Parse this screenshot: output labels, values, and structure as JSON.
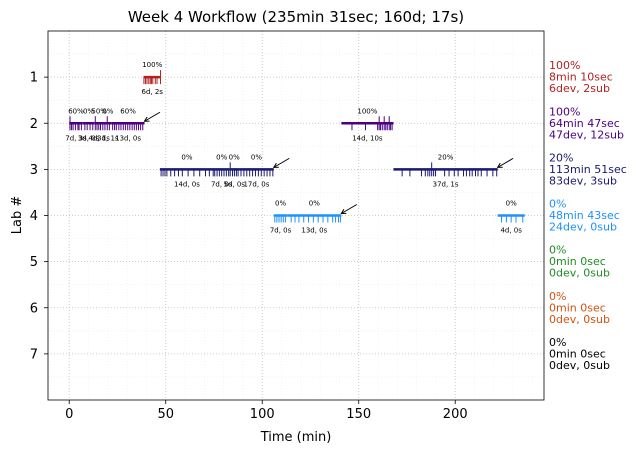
{
  "chart_data": {
    "type": "timeline",
    "title": "Week 4 Workflow (235min 31sec; 160d; 17s)",
    "xlabel": "Time (min)",
    "ylabel": "Lab #",
    "xlim": [
      -11,
      246
    ],
    "ylim": [
      8.0,
      0.0
    ],
    "xticks": [
      0,
      50,
      100,
      150,
      200
    ],
    "yticks": [
      1,
      2,
      3,
      4,
      5,
      6,
      7
    ],
    "grid": true,
    "labs": [
      {
        "lab": 1,
        "color": "#b22222",
        "side": [
          "100%",
          "8min 10sec",
          "6dev, 2sub"
        ],
        "segments": [
          {
            "start": 38.5,
            "end": 47.5,
            "pct": "100%",
            "note": "6d, 2s",
            "events": [
              38.7,
              39.5,
              40.3,
              41.2,
              42.0,
              42.6,
              43.3,
              44.6,
              45.5,
              47.3
            ],
            "tall": [
              47.3
            ]
          }
        ],
        "arrows": []
      },
      {
        "lab": 2,
        "color": "#4b0082",
        "side": [
          "100%",
          "64min 47sec",
          "47dev, 12sub"
        ],
        "segments": [
          {
            "start": 0,
            "end": 7,
            "pct": "60%",
            "note": "7d, 3s",
            "events": [
              0.4,
              1.2,
              2.0,
              3.2,
              4.5,
              5.1,
              6.3
            ],
            "tall": [
              0.4
            ]
          },
          {
            "start": 7,
            "end": 13,
            "pct": "0%",
            "note": "3d, 0s",
            "events": [
              8.1,
              9.3,
              10.8,
              12.2
            ],
            "tall": []
          },
          {
            "start": 13,
            "end": 18,
            "pct": "50%",
            "note": "4d, 1s",
            "events": [
              13.5,
              14.4,
              15.3,
              16.2,
              17.4
            ],
            "tall": [
              13.5
            ]
          },
          {
            "start": 18,
            "end": 22,
            "pct": "0%",
            "note": "3d, 1s",
            "events": [
              18.5,
              19.7,
              20.8
            ],
            "tall": [
              19.7
            ]
          },
          {
            "start": 22,
            "end": 39,
            "pct": "60%",
            "note": "13d, 0s",
            "events": [
              22.5,
              23.5,
              24.4,
              25.7,
              26.8,
              28.0,
              29.1,
              30.3,
              31.4,
              32.6,
              33.7,
              34.8,
              35.9,
              37.0,
              38.1
            ],
            "tall": []
          },
          {
            "start": 141,
            "end": 168,
            "pct": "100%",
            "note": "14d, 10s",
            "events": [
              146.5,
              153.5,
              159.8,
              160.6,
              161.3,
              162.2,
              163.2,
              164.0,
              164.8,
              165.8,
              166.5,
              167.3
            ],
            "tall": [
              160.6,
              163.2,
              165.8
            ]
          }
        ],
        "arrows": [
          {
            "x": 39,
            "tail_x": 47
          }
        ]
      },
      {
        "lab": 3,
        "color": "#191970",
        "side": [
          "20%",
          "113min 51sec",
          "83dev, 3sub"
        ],
        "segments": [
          {
            "start": 47,
            "end": 75,
            "pct": "0%",
            "note": "14d, 0s",
            "events": [
              47.6,
              48.6,
              49.6,
              50.6,
              52.6,
              54.6,
              56.6,
              58.6,
              61.6,
              64.6,
              67.6,
              70.6,
              72.6,
              74.6
            ],
            "tall": []
          },
          {
            "start": 75,
            "end": 83,
            "pct": "0%",
            "note": "7d, 0s",
            "events": [
              75.4,
              76.6,
              77.8,
              79.0,
              80.2,
              81.4,
              82.6
            ],
            "tall": []
          },
          {
            "start": 83,
            "end": 88,
            "pct": "0%",
            "note": "5d, 0s",
            "events": [
              83.4,
              84.6,
              85.6,
              86.6,
              87.5
            ],
            "tall": [
              83.4
            ]
          },
          {
            "start": 88,
            "end": 106,
            "pct": "0%",
            "note": "17d, 0s",
            "events": [
              89.0,
              90.5,
              92.0,
              93.5,
              95.0,
              96.5,
              98.0,
              99.5,
              101.0,
              102.5,
              104.0,
              105.5
            ],
            "tall": []
          },
          {
            "start": 168,
            "end": 222,
            "pct": "20%",
            "note": "37d, 1s",
            "events": [
              172.5,
              176.5,
              182.5,
              184.5,
              185.8,
              186.8,
              187.8,
              188.8,
              189.8,
              194.5,
              196.8,
              199.5,
              201.5,
              204.3,
              205.8,
              207.5,
              208.8,
              210.5,
              211.8,
              213.5,
              216.5,
              219.5,
              221.5
            ],
            "tall": [
              187.8
            ]
          }
        ],
        "arrows": [
          {
            "x": 106,
            "tail_x": 114
          },
          {
            "x": 222,
            "tail_x": 230
          }
        ]
      },
      {
        "lab": 4,
        "color": "#1e90ff",
        "side": [
          "0%",
          "48min 43sec",
          "24dev, 0sub"
        ],
        "segments": [
          {
            "start": 106,
            "end": 113,
            "pct": "0%",
            "note": "7d, 0s",
            "events": [
              106.5,
              107.6,
              108.7,
              109.8,
              110.9,
              112.0
            ],
            "tall": []
          },
          {
            "start": 113,
            "end": 141,
            "pct": "0%",
            "note": "13d, 0s",
            "events": [
              115.0,
              117.0,
              119.0,
              121.5,
              124.0,
              126.5,
              129.0,
              131.5,
              134.0,
              136.5,
              138.0,
              139.5,
              140.5
            ],
            "tall": []
          },
          {
            "start": 222,
            "end": 236,
            "pct": "0%",
            "note": "4d, 0s",
            "events": [
              224.0,
              226.5,
              229.0,
              231.5,
              235.0
            ],
            "tall": []
          }
        ],
        "arrows": [
          {
            "x": 141,
            "tail_x": 149
          }
        ]
      },
      {
        "lab": 5,
        "color": "#228b22",
        "side": [
          "0%",
          "0min 0sec",
          "0dev, 0sub"
        ],
        "segments": [],
        "arrows": []
      },
      {
        "lab": 6,
        "color": "#d2520f",
        "side": [
          "0%",
          "0min 0sec",
          "0dev, 0sub"
        ],
        "segments": [],
        "arrows": []
      },
      {
        "lab": 7,
        "color": "#000000",
        "side": [
          "0%",
          "0min 0sec",
          "0dev, 0sub"
        ],
        "segments": [],
        "arrows": []
      }
    ]
  }
}
